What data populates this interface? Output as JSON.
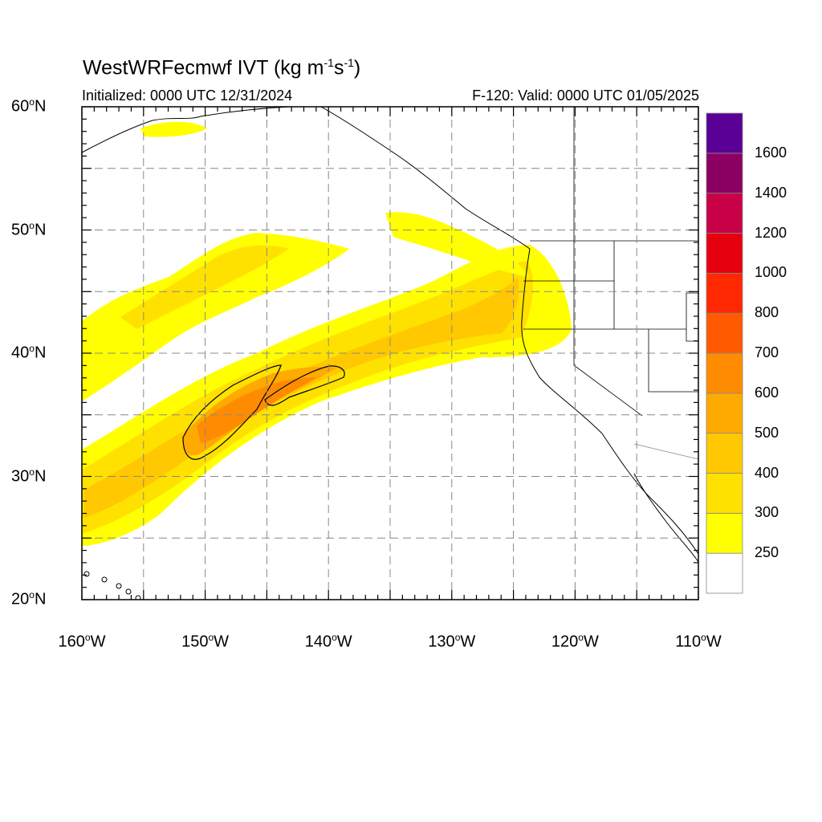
{
  "title": {
    "main": "WestWRFecmwf IVT (kg m",
    "exp1": "-1",
    "mid": "s",
    "exp2": "-1",
    "end": ")"
  },
  "init_text": "Initialized: 0000 UTC 12/31/2024",
  "valid_text": "F-120: Valid: 0000 UTC 01/05/2025",
  "axes": {
    "lat_labels": [
      {
        "deg": "60",
        "hem": "N"
      },
      {
        "deg": "50",
        "hem": "N"
      },
      {
        "deg": "40",
        "hem": "N"
      },
      {
        "deg": "30",
        "hem": "N"
      },
      {
        "deg": "20",
        "hem": "N"
      }
    ],
    "lon_labels": [
      {
        "deg": "160",
        "hem": "W"
      },
      {
        "deg": "150",
        "hem": "W"
      },
      {
        "deg": "140",
        "hem": "W"
      },
      {
        "deg": "130",
        "hem": "W"
      },
      {
        "deg": "120",
        "hem": "W"
      },
      {
        "deg": "110",
        "hem": "W"
      }
    ],
    "lon_range": [
      -160,
      -110
    ],
    "lat_range": [
      20,
      60
    ],
    "grid": "dashed every 5 degrees"
  },
  "colorbar": {
    "levels": [
      "250",
      "300",
      "400",
      "500",
      "600",
      "700",
      "800",
      "1000",
      "1200",
      "1400",
      "1600"
    ],
    "colors": [
      "#ffffff",
      "#ffff00",
      "#ffe100",
      "#ffc800",
      "#ffaa00",
      "#ff8c00",
      "#ff5a00",
      "#ff2800",
      "#e6000f",
      "#c80046",
      "#8c0064",
      "#5a0096"
    ]
  },
  "contour_level": "500"
}
